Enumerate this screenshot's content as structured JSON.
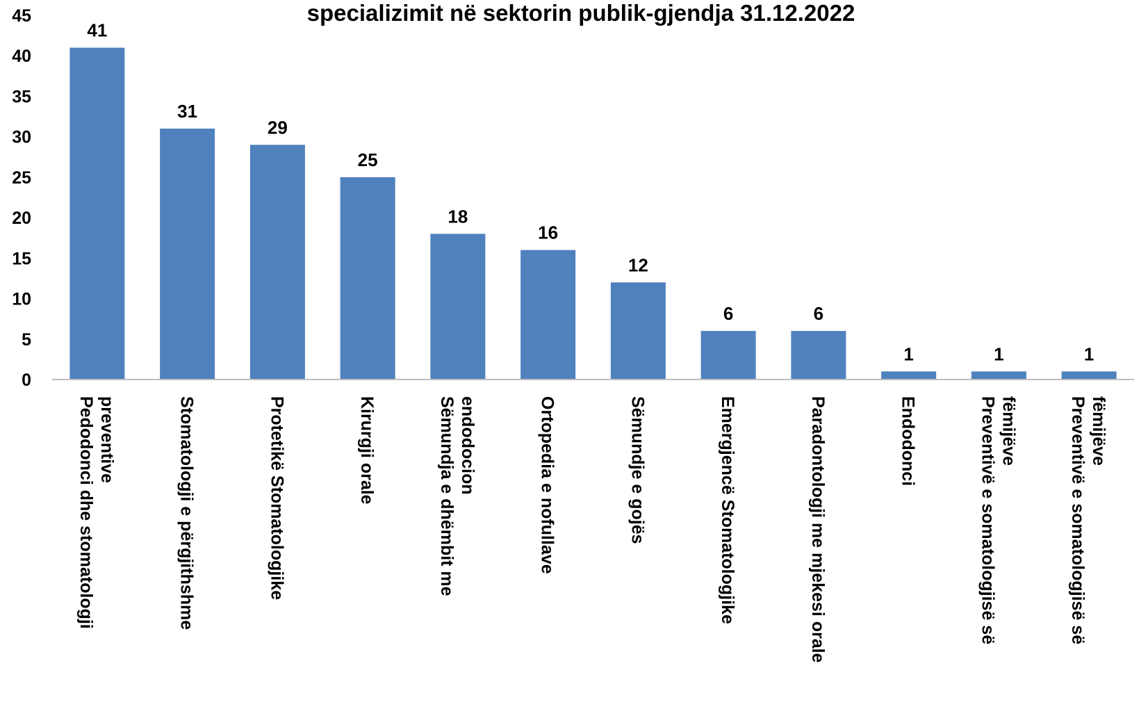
{
  "chart_data": {
    "type": "bar",
    "title": "specializimit në sektorin publik-gjendja 31.12.2022",
    "categories": [
      [
        "Pedodonci dhe stomatologji",
        "preventive"
      ],
      [
        "Stomatologji e përgjithshme"
      ],
      [
        "Protetikë Stomatologjike"
      ],
      [
        "Kirurgji orale"
      ],
      [
        "Sëmundja e dhëmbit me",
        "endodocion"
      ],
      [
        "Ortopedia e nofullave"
      ],
      [
        "Sëmundje e gojës"
      ],
      [
        "Emergjencë Stomatologjike"
      ],
      [
        "Paradontologji me mjekesi orale"
      ],
      [
        "Endodonci"
      ],
      [
        "Preventivë e somatologjisë së",
        "fëmijëve"
      ],
      [
        "Preventivë e somatologjisë së",
        "fëmijëve"
      ]
    ],
    "values": [
      41,
      31,
      29,
      25,
      18,
      16,
      12,
      6,
      6,
      1,
      1,
      1
    ],
    "ylim": [
      0,
      45
    ],
    "yticks": [
      0,
      5,
      10,
      15,
      20,
      25,
      30,
      35,
      40,
      45
    ],
    "xlabel": "",
    "ylabel": "",
    "grid": false,
    "legend": "none",
    "bar_color": "#4f81bd",
    "data_labels": true
  }
}
